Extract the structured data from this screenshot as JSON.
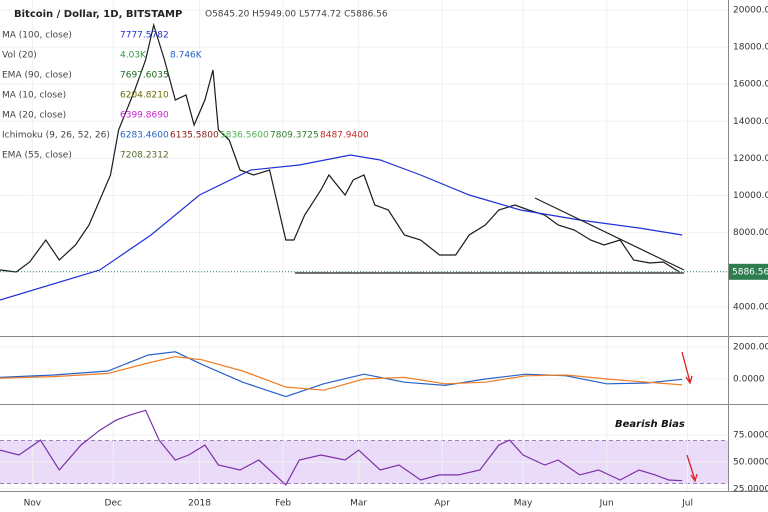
{
  "header": {
    "title": "Bitcoin / Dollar, 1D, BITSTAMP",
    "ohlc": "O5845.20 H5949.00 L5774.72 C5886.56",
    "legend": [
      {
        "name": "MA (100, close)",
        "values": [
          {
            "text": "7777.5782",
            "color": "#2130d8"
          }
        ]
      },
      {
        "name": "Vol (20)",
        "values": [
          {
            "text": "4.03K",
            "color": "#2e9a44"
          },
          {
            "text": "8.746K",
            "color": "#2962c8"
          }
        ]
      },
      {
        "name": "EMA (90, close)",
        "values": [
          {
            "text": "7697.6035",
            "color": "#1f6b1f"
          }
        ]
      },
      {
        "name": "MA (10, close)",
        "values": [
          {
            "text": "6204.8210",
            "color": "#6b6b00"
          }
        ]
      },
      {
        "name": "MA (20, close)",
        "values": [
          {
            "text": "6399.8690",
            "color": "#d020d0"
          }
        ]
      },
      {
        "name": "Ichimoku (9, 26, 52, 26)",
        "values": [
          {
            "text": "6283.4600",
            "color": "#2962c8"
          },
          {
            "text": "6135.5800",
            "color": "#8b1a1a"
          },
          {
            "text": "5836.5600",
            "color": "#4caf50"
          },
          {
            "text": "7809.3725",
            "color": "#2e7d32"
          },
          {
            "text": "8487.9400",
            "color": "#c62828"
          }
        ]
      },
      {
        "name": "EMA (55, close)",
        "values": [
          {
            "text": "7208.2312",
            "color": "#556b2f"
          }
        ]
      }
    ]
  },
  "chart_data": [
    {
      "type": "line",
      "xlim": [
        0,
        270
      ],
      "ylim": [
        2480,
        20540
      ],
      "last_price": 5886.56,
      "last_color": "#2e7d4f",
      "yticks": [
        {
          "value": 4000,
          "label": "4000.00"
        },
        {
          "value": 8000,
          "label": "8000.00"
        },
        {
          "value": 10000,
          "label": "10000.00"
        },
        {
          "value": 12000,
          "label": "12000.00"
        },
        {
          "value": 14000,
          "label": "14000.00"
        },
        {
          "value": 16000,
          "label": "16000.00"
        },
        {
          "value": 18000,
          "label": "18000.00"
        },
        {
          "value": 20000,
          "label": "20000.00"
        }
      ],
      "series": [
        {
          "color": "#1b1b1b",
          "x": [
            0,
            6,
            11,
            17,
            22,
            28,
            33,
            37,
            41,
            44,
            50,
            54,
            57,
            61,
            65,
            69,
            72,
            76,
            79,
            81,
            85,
            89,
            94,
            100,
            106,
            109,
            113,
            119,
            122,
            128,
            131,
            135,
            139,
            144,
            150,
            156,
            163,
            169,
            174,
            180,
            185,
            191,
            196,
            202,
            207,
            213,
            219,
            224,
            230,
            235,
            241,
            246,
            252
          ],
          "values": [
            5986,
            5878,
            6417,
            7603,
            6525,
            7333,
            8411,
            9759,
            11106,
            13532,
            15688,
            17305,
            19191,
            17305,
            15149,
            15418,
            13801,
            15149,
            16766,
            13532,
            12993,
            11376,
            11106,
            11376,
            7603,
            7603,
            8950,
            10298,
            11106,
            10028,
            10837,
            11106,
            9489,
            9220,
            7872,
            7603,
            6794,
            6794,
            7872,
            8411,
            9220,
            9489,
            9220,
            8950,
            8411,
            8142,
            7603,
            7333,
            7603,
            6525,
            6363,
            6417,
            5878
          ]
        },
        {
          "color": "#2130d8",
          "x": [
            0,
            37,
            56,
            74,
            93,
            111,
            130,
            141,
            156,
            174,
            193,
            215,
            237,
            253
          ],
          "values": [
            4369,
            5986,
            7872,
            10028,
            11376,
            11645,
            12185,
            11915,
            11106,
            10028,
            9220,
            8681,
            8250,
            7872
          ]
        }
      ]
    },
    {
      "type": "line",
      "xlim": [
        0,
        270
      ],
      "ylim": [
        -1500,
        2560
      ],
      "yticks": [
        {
          "value": 2000,
          "label": "2000.0000"
        },
        {
          "value": 0,
          "label": "0.0000"
        }
      ],
      "series": [
        {
          "color": "#2962c8",
          "x": [
            0,
            20,
            40,
            55,
            65,
            75,
            90,
            106,
            120,
            135,
            150,
            165,
            180,
            195,
            210,
            225,
            240,
            253
          ],
          "values": [
            100,
            250,
            500,
            1500,
            1700,
            900,
            -200,
            -1100,
            -300,
            300,
            -200,
            -400,
            0,
            300,
            200,
            -300,
            -250,
            -20
          ]
        },
        {
          "color": "#ef7d22",
          "x": [
            0,
            20,
            40,
            55,
            65,
            75,
            90,
            106,
            120,
            135,
            150,
            165,
            180,
            195,
            210,
            225,
            240,
            253
          ],
          "values": [
            50,
            150,
            350,
            1000,
            1400,
            1200,
            500,
            -500,
            -700,
            0,
            100,
            -300,
            -200,
            200,
            250,
            0,
            -200,
            -370
          ]
        }
      ]
    },
    {
      "type": "line",
      "xlim": [
        0,
        270
      ],
      "ylim": [
        24,
        103
      ],
      "band": [
        30,
        70
      ],
      "band_color": "#eadcf8",
      "annotation": "Bearish Bias",
      "yticks": [
        {
          "value": 75,
          "label": "75.0000"
        },
        {
          "value": 50,
          "label": "50.0000"
        },
        {
          "value": 25,
          "label": "25.0000"
        }
      ],
      "xticks": [
        {
          "value": 12,
          "label": "Nov"
        },
        {
          "value": 42,
          "label": "Dec"
        },
        {
          "value": 74,
          "label": "2018"
        },
        {
          "value": 105,
          "label": "Feb"
        },
        {
          "value": 133,
          "label": "Mar"
        },
        {
          "value": 164,
          "label": "Apr"
        },
        {
          "value": 194,
          "label": "May"
        },
        {
          "value": 225,
          "label": "Jun"
        },
        {
          "value": 255,
          "label": "Jul"
        }
      ],
      "series": [
        {
          "color": "#7b2fa8",
          "x": [
            0,
            7,
            15,
            22,
            30,
            37,
            43,
            48,
            54,
            59,
            65,
            70,
            76,
            81,
            89,
            96,
            106,
            111,
            119,
            128,
            133,
            141,
            148,
            156,
            163,
            170,
            178,
            185,
            189,
            194,
            202,
            207,
            215,
            222,
            230,
            237,
            243,
            248,
            253
          ],
          "values": [
            61.1,
            56.5,
            70.4,
            42.6,
            65.7,
            79.6,
            88.9,
            93.5,
            98.1,
            70.4,
            51.9,
            56.5,
            65.7,
            47.2,
            42.6,
            51.9,
            28.7,
            51.9,
            56.5,
            51.9,
            61.1,
            42.6,
            47.2,
            33.3,
            38.0,
            38.0,
            42.6,
            65.7,
            70.4,
            56.5,
            47.2,
            51.9,
            38.0,
            42.6,
            33.3,
            42.6,
            38.0,
            33.3,
            32.6
          ]
        }
      ]
    }
  ]
}
